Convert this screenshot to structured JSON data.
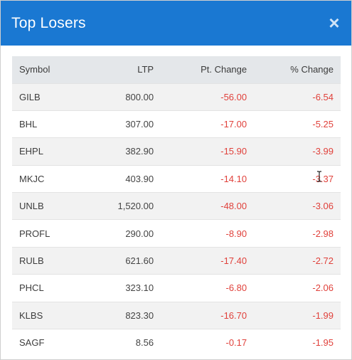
{
  "dialog": {
    "title": "Top Losers",
    "close_icon": "close-icon",
    "close_glyph": "×"
  },
  "table": {
    "columns": [
      "Symbol",
      "LTP",
      "Pt. Change",
      "% Change"
    ],
    "rows": [
      {
        "symbol": "GILB",
        "ltp": "800.00",
        "pt_change": "-56.00",
        "pct_change": "-6.54"
      },
      {
        "symbol": "BHL",
        "ltp": "307.00",
        "pt_change": "-17.00",
        "pct_change": "-5.25"
      },
      {
        "symbol": "EHPL",
        "ltp": "382.90",
        "pt_change": "-15.90",
        "pct_change": "-3.99"
      },
      {
        "symbol": "MKJC",
        "ltp": "403.90",
        "pt_change": "-14.10",
        "pct_change": "-3.37"
      },
      {
        "symbol": "UNLB",
        "ltp": "1,520.00",
        "pt_change": "-48.00",
        "pct_change": "-3.06"
      },
      {
        "symbol": "PROFL",
        "ltp": "290.00",
        "pt_change": "-8.90",
        "pct_change": "-2.98"
      },
      {
        "symbol": "RULB",
        "ltp": "621.60",
        "pt_change": "-17.40",
        "pct_change": "-2.72"
      },
      {
        "symbol": "PHCL",
        "ltp": "323.10",
        "pt_change": "-6.80",
        "pct_change": "-2.06"
      },
      {
        "symbol": "KLBS",
        "ltp": "823.30",
        "pt_change": "-16.70",
        "pct_change": "-1.99"
      },
      {
        "symbol": "SAGF",
        "ltp": "8.56",
        "pt_change": "-0.17",
        "pct_change": "-1.95"
      }
    ]
  },
  "colors": {
    "header_bg": "#1a78d2",
    "negative": "#e0413b",
    "table_header_bg": "#e4e7ea",
    "row_alt_bg": "#f2f2f2"
  }
}
